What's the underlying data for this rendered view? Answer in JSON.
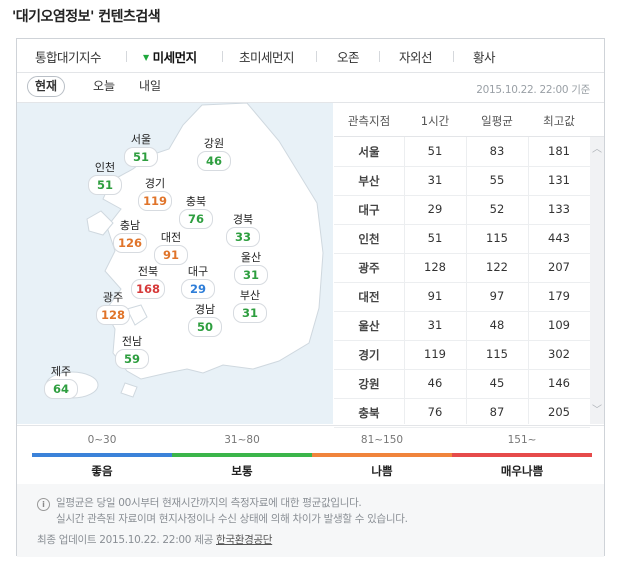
{
  "page_title": "'대기오염정보' 컨텐츠검색",
  "tabs": [
    {
      "label": "통합대기지수",
      "active": false
    },
    {
      "label": "미세먼지",
      "active": true
    },
    {
      "label": "초미세먼지",
      "active": false
    },
    {
      "label": "오존",
      "active": false
    },
    {
      "label": "자외선",
      "active": false
    },
    {
      "label": "황사",
      "active": false
    }
  ],
  "time_buttons": [
    "현재",
    "오늘",
    "내일"
  ],
  "basis_time": "2015.10.22. 22:00 기준",
  "map_regions": [
    {
      "name": "서울",
      "value": "51",
      "color": "#2e9e3f"
    },
    {
      "name": "강원",
      "value": "46",
      "color": "#2e9e3f"
    },
    {
      "name": "인천",
      "value": "51",
      "color": "#2e9e3f"
    },
    {
      "name": "경기",
      "value": "119",
      "color": "#e0742a"
    },
    {
      "name": "충북",
      "value": "76",
      "color": "#2e9e3f"
    },
    {
      "name": "경북",
      "value": "33",
      "color": "#2e9e3f"
    },
    {
      "name": "충남",
      "value": "126",
      "color": "#e0742a"
    },
    {
      "name": "대전",
      "value": "91",
      "color": "#e0742a"
    },
    {
      "name": "전북",
      "value": "168",
      "color": "#d63a3a"
    },
    {
      "name": "대구",
      "value": "29",
      "color": "#2f7ed8"
    },
    {
      "name": "울산",
      "value": "31",
      "color": "#2e9e3f"
    },
    {
      "name": "광주",
      "value": "128",
      "color": "#e0742a"
    },
    {
      "name": "경남",
      "value": "50",
      "color": "#2e9e3f"
    },
    {
      "name": "부산",
      "value": "31",
      "color": "#2e9e3f"
    },
    {
      "name": "전남",
      "value": "59",
      "color": "#2e9e3f"
    },
    {
      "name": "제주",
      "value": "64",
      "color": "#2e9e3f"
    }
  ],
  "table": {
    "headers": [
      "관측지점",
      "1시간",
      "일평균",
      "최고값"
    ],
    "rows": [
      [
        "서울",
        "51",
        "83",
        "181"
      ],
      [
        "부산",
        "31",
        "55",
        "131"
      ],
      [
        "대구",
        "29",
        "52",
        "133"
      ],
      [
        "인천",
        "51",
        "115",
        "443"
      ],
      [
        "광주",
        "128",
        "122",
        "207"
      ],
      [
        "대전",
        "91",
        "97",
        "179"
      ],
      [
        "울산",
        "31",
        "48",
        "109"
      ],
      [
        "경기",
        "119",
        "115",
        "302"
      ],
      [
        "강원",
        "46",
        "45",
        "146"
      ],
      [
        "충북",
        "76",
        "87",
        "205"
      ]
    ]
  },
  "legend": [
    {
      "range": "0~30",
      "label": "좋음",
      "color": "#3b82d9"
    },
    {
      "range": "31~80",
      "label": "보통",
      "color": "#3bb54a"
    },
    {
      "range": "81~150",
      "label": "나쁨",
      "color": "#f0843c"
    },
    {
      "range": "151~",
      "label": "매우나쁨",
      "color": "#e64b4b"
    }
  ],
  "notes": {
    "line1": "일평균은 당일 00시부터 현재시간까지의 측정자료에 대한 평균값입니다.",
    "line2": "실시간 관측된 자료이며 현지사정이나 수신 상태에 의해 차이가 발생할 수 있습니다.",
    "updated_prefix": "최종 업데이트 2015.10.22. 22:00 제공",
    "provider": "한국환경공단"
  },
  "icons": {
    "info": "info-icon",
    "scroll_up": "chevron-up-icon",
    "scroll_down": "chevron-down-icon"
  }
}
